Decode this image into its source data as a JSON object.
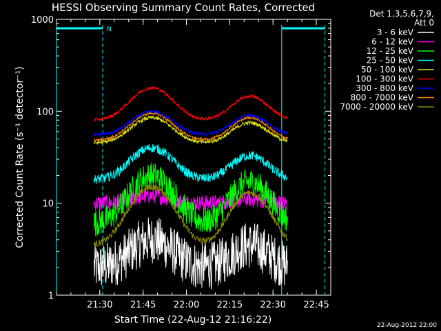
{
  "chart_data": {
    "type": "line",
    "title": "HESSI Observing Summary Count Rates, Corrected",
    "xlabel": "Start Time (22-Aug-12 21:16:22)",
    "ylabel": "Corrected Count Rate (s⁻¹ detector⁻¹)",
    "yscale": "log",
    "ylim": [
      1,
      1000
    ],
    "xlim_minutes_after_2115": [
      0,
      95
    ],
    "x_ticks": [
      {
        "label": "21:30",
        "minute": 15
      },
      {
        "label": "21:45",
        "minute": 30
      },
      {
        "label": "22:00",
        "minute": 45
      },
      {
        "label": "22:15",
        "minute": 60
      },
      {
        "label": "22:30",
        "minute": 75
      },
      {
        "label": "22:45",
        "minute": 90
      }
    ],
    "y_ticks": [
      {
        "label": "1",
        "value": 1
      },
      {
        "label": "10",
        "value": 10
      },
      {
        "label": "100",
        "value": 100
      },
      {
        "label": "1000",
        "value": 1000
      }
    ],
    "legend_header": [
      "Det 1,3,5,6,7,9,",
      "Att 0"
    ],
    "legend_position": "right",
    "series": [
      {
        "name": "3 - 6 keV",
        "color": "#ffffff",
        "base": 2.0,
        "peak1": 4.0,
        "peak2": 3.5,
        "noise": 0.6
      },
      {
        "name": "6 - 12 keV",
        "color": "#ff00ff",
        "base": 10.0,
        "peak1": 12.0,
        "peak2": 11.0,
        "noise": 0.2
      },
      {
        "name": "12 - 25 keV",
        "color": "#00ff00",
        "base": 6.0,
        "peak1": 20.0,
        "peak2": 17.0,
        "noise": 0.35
      },
      {
        "name": "25 - 50 keV",
        "color": "#00ffff",
        "base": 18.0,
        "peak1": 40.0,
        "peak2": 33.0,
        "noise": 0.12
      },
      {
        "name": "50 - 100 keV",
        "color": "#dddd00",
        "base": 45.0,
        "peak1": 85.0,
        "peak2": 75.0,
        "noise": 0.05
      },
      {
        "name": "100 - 300 keV",
        "color": "#ff0000",
        "base": 80.0,
        "peak1": 180.0,
        "peak2": 145.0,
        "noise": 0.04
      },
      {
        "name": "300 - 800 keV",
        "color": "#0000ff",
        "base": 55.0,
        "peak1": 100.0,
        "peak2": 90.0,
        "noise": 0.04
      },
      {
        "name": "800 - 7000 keV",
        "color": "#ff8800",
        "base": 48.0,
        "peak1": 95.0,
        "peak2": 85.0,
        "noise": 0.03
      },
      {
        "name": "7000 - 20000 keV",
        "color": "#888800",
        "base": 3.5,
        "peak1": 15.0,
        "peak2": 13.0,
        "noise": 0.08
      }
    ],
    "data_window_minutes": [
      13,
      80
    ],
    "peak1_minute": 33,
    "peak2_minute": 67,
    "trough_minute": 50,
    "night_intervals": [
      [
        0,
        16
      ],
      [
        78,
        93
      ]
    ],
    "night_label": "N",
    "night_color": "#00ffff"
  },
  "footer_date": "22-Aug-2012 22:00"
}
